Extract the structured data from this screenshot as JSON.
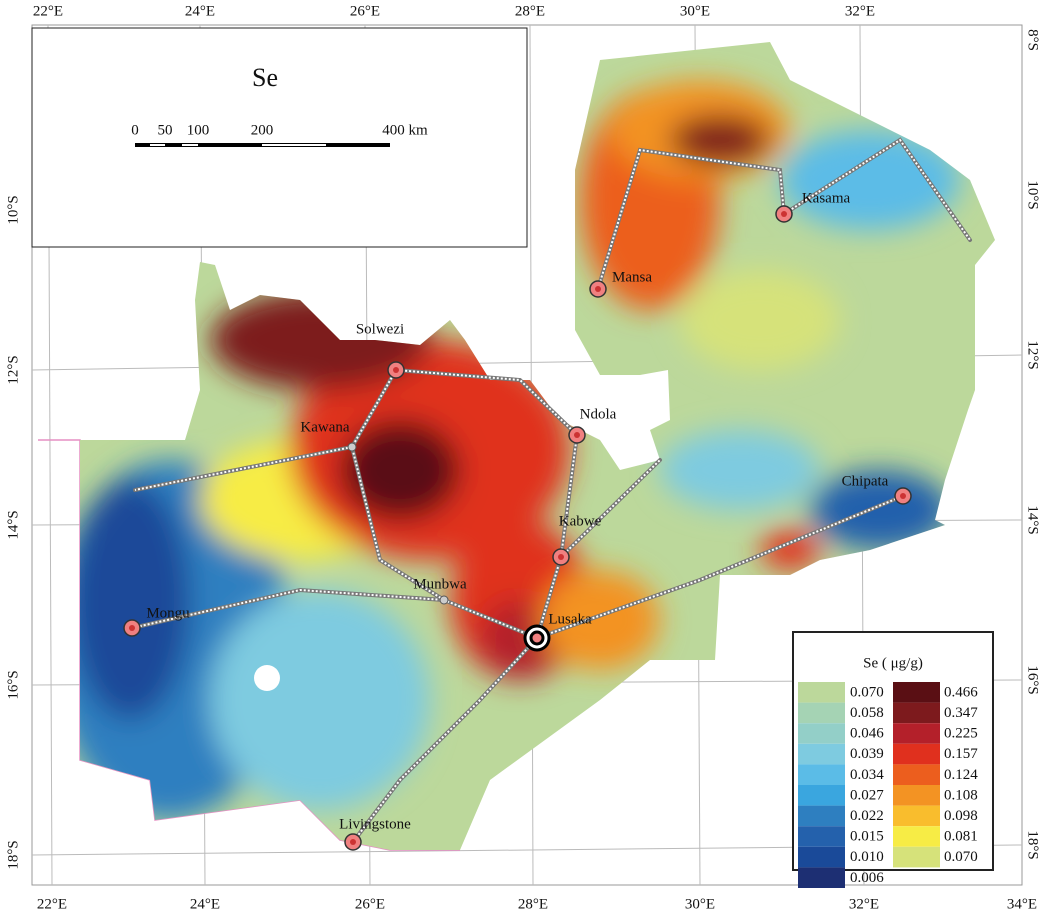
{
  "map": {
    "title": "Se",
    "scale_bar": [
      "0",
      "50",
      "100",
      "200",
      "400 km"
    ],
    "top_axis": [
      "22°E",
      "24°E",
      "26°E",
      "28°E",
      "30°E",
      "32°E"
    ],
    "bottom_axis": [
      "22°E",
      "24°E",
      "26°E",
      "28°E",
      "30°E",
      "32°E",
      "34°E"
    ],
    "left_axis": [
      "10°S",
      "12°S",
      "14°S",
      "16°S",
      "18°S"
    ],
    "right_axis": [
      "8°S",
      "10°S",
      "12°S",
      "14°S",
      "16°S",
      "18°S"
    ],
    "cities": [
      "Solwezi",
      "Kawana",
      "Ndola",
      "Mansa",
      "Kasama",
      "Chipata",
      "Kabwe",
      "Munbwa",
      "Lusaka",
      "Mongu",
      "Livingstone"
    ],
    "legend": {
      "title": "Se ( μg/g)",
      "left": [
        {
          "label": "0.070",
          "color": "#bcd89b"
        },
        {
          "label": "0.058",
          "color": "#a5d3b4"
        },
        {
          "label": "0.046",
          "color": "#93cfc8"
        },
        {
          "label": "0.039",
          "color": "#7ecbe0"
        },
        {
          "label": "0.034",
          "color": "#5bbce7"
        },
        {
          "label": "0.027",
          "color": "#3aa6df"
        },
        {
          "label": "0.022",
          "color": "#2e7fc0"
        },
        {
          "label": "0.015",
          "color": "#2461ac"
        },
        {
          "label": "0.010",
          "color": "#1a4a99"
        },
        {
          "label": "0.006",
          "color": "#1d2f73"
        }
      ],
      "right": [
        {
          "label": "0.466",
          "color": "#5a0f14"
        },
        {
          "label": "0.347",
          "color": "#7d1a1d"
        },
        {
          "label": "0.225",
          "color": "#b4202a"
        },
        {
          "label": "0.157",
          "color": "#e0301e"
        },
        {
          "label": "0.124",
          "color": "#ec5e1e"
        },
        {
          "label": "0.108",
          "color": "#f39323"
        },
        {
          "label": "0.098",
          "color": "#f9bd2d"
        },
        {
          "label": "0.081",
          "color": "#f7ec45"
        },
        {
          "label": "0.070",
          "color": "#d6e27a"
        }
      ]
    }
  }
}
